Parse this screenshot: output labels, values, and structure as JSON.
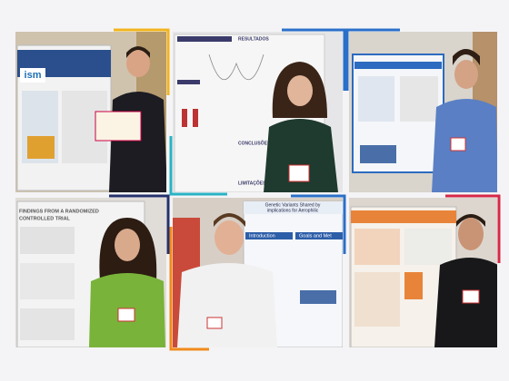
{
  "panels": [
    {
      "texts": [
        "ism"
      ]
    },
    {
      "texts": [
        "RESULTADOS",
        "CONCLUSÕES",
        "LIMITAÇÕES"
      ]
    },
    {
      "texts": []
    },
    {
      "texts": [
        "FINDINGS FROM A RANDOMIZED",
        "CONTROLLED TRIAL"
      ]
    },
    {
      "texts": [
        "Genetic Variants Shared by",
        "implications for Aerophilic",
        "Introduction",
        "Goals and Met"
      ]
    },
    {
      "texts": []
    }
  ]
}
